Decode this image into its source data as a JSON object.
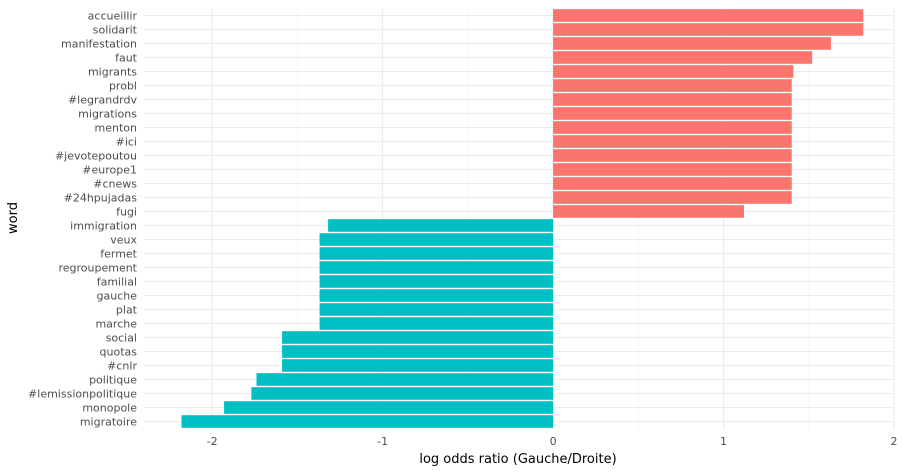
{
  "chart_data": {
    "type": "bar",
    "orientation": "horizontal",
    "xlabel": "log odds ratio (Gauche/Droite)",
    "ylabel": "word",
    "xlim": [
      -2.4,
      2.0
    ],
    "xticks": [
      -2,
      -1,
      0,
      1,
      2
    ],
    "xtick_labels": [
      "-2",
      "-1",
      "0",
      "1",
      "2"
    ],
    "grid": true,
    "legend": "none",
    "colors": {
      "positive": "#F8766D",
      "negative": "#00BFC4"
    },
    "categories": [
      "accueillir",
      "solidarit",
      "manifestation",
      "faut",
      "migrants",
      "probl",
      "#legrandrdv",
      "migrations",
      "menton",
      "#ici",
      "#jevotepoutou",
      "#europe1",
      "#cnews",
      "#24hpujadas",
      "fugi",
      "immigration",
      "veux",
      "fermet",
      "regroupement",
      "familial",
      "gauche",
      "plat",
      "marche",
      "social",
      "quotas",
      "#cnlr",
      "politique",
      "#lemissionpolitique",
      "monopole",
      "migratoire"
    ],
    "values": [
      1.82,
      1.82,
      1.63,
      1.52,
      1.41,
      1.4,
      1.4,
      1.4,
      1.4,
      1.4,
      1.4,
      1.4,
      1.4,
      1.4,
      1.12,
      -1.32,
      -1.37,
      -1.37,
      -1.37,
      -1.37,
      -1.37,
      -1.37,
      -1.37,
      -1.59,
      -1.59,
      -1.59,
      -1.74,
      -1.77,
      -1.93,
      -2.18
    ]
  }
}
